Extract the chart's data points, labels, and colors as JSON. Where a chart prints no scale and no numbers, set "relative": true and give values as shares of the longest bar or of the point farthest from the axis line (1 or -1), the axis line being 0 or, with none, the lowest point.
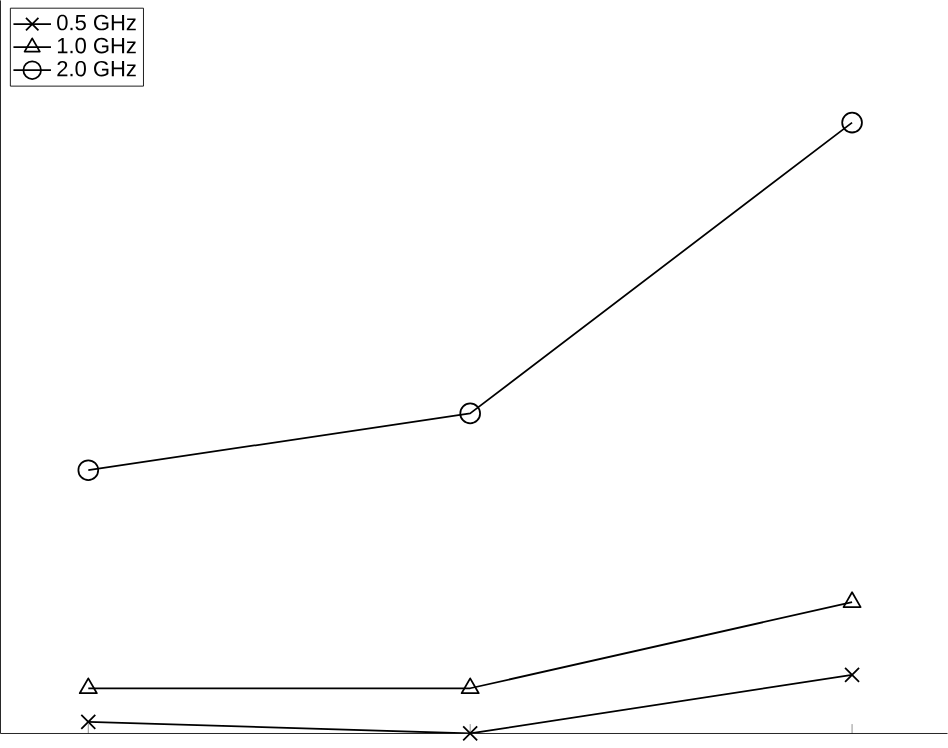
{
  "chart_data": {
    "type": "line",
    "relative": true,
    "categories": [
      null,
      null,
      null
    ],
    "legend": "top left",
    "series": [
      {
        "name": "0.5 GHz",
        "color": "#000000",
        "marker": "cross",
        "values": [
          0.019,
          0,
          0.096
        ]
      },
      {
        "name": "1.0 GHz",
        "color": "#000000",
        "marker": "triangle",
        "values": [
          0.074,
          0.074,
          0.215
        ]
      },
      {
        "name": "2.0 GHz",
        "color": "#000000",
        "marker": "circle",
        "values": [
          0.431,
          0.524,
          1
        ]
      }
    ]
  }
}
